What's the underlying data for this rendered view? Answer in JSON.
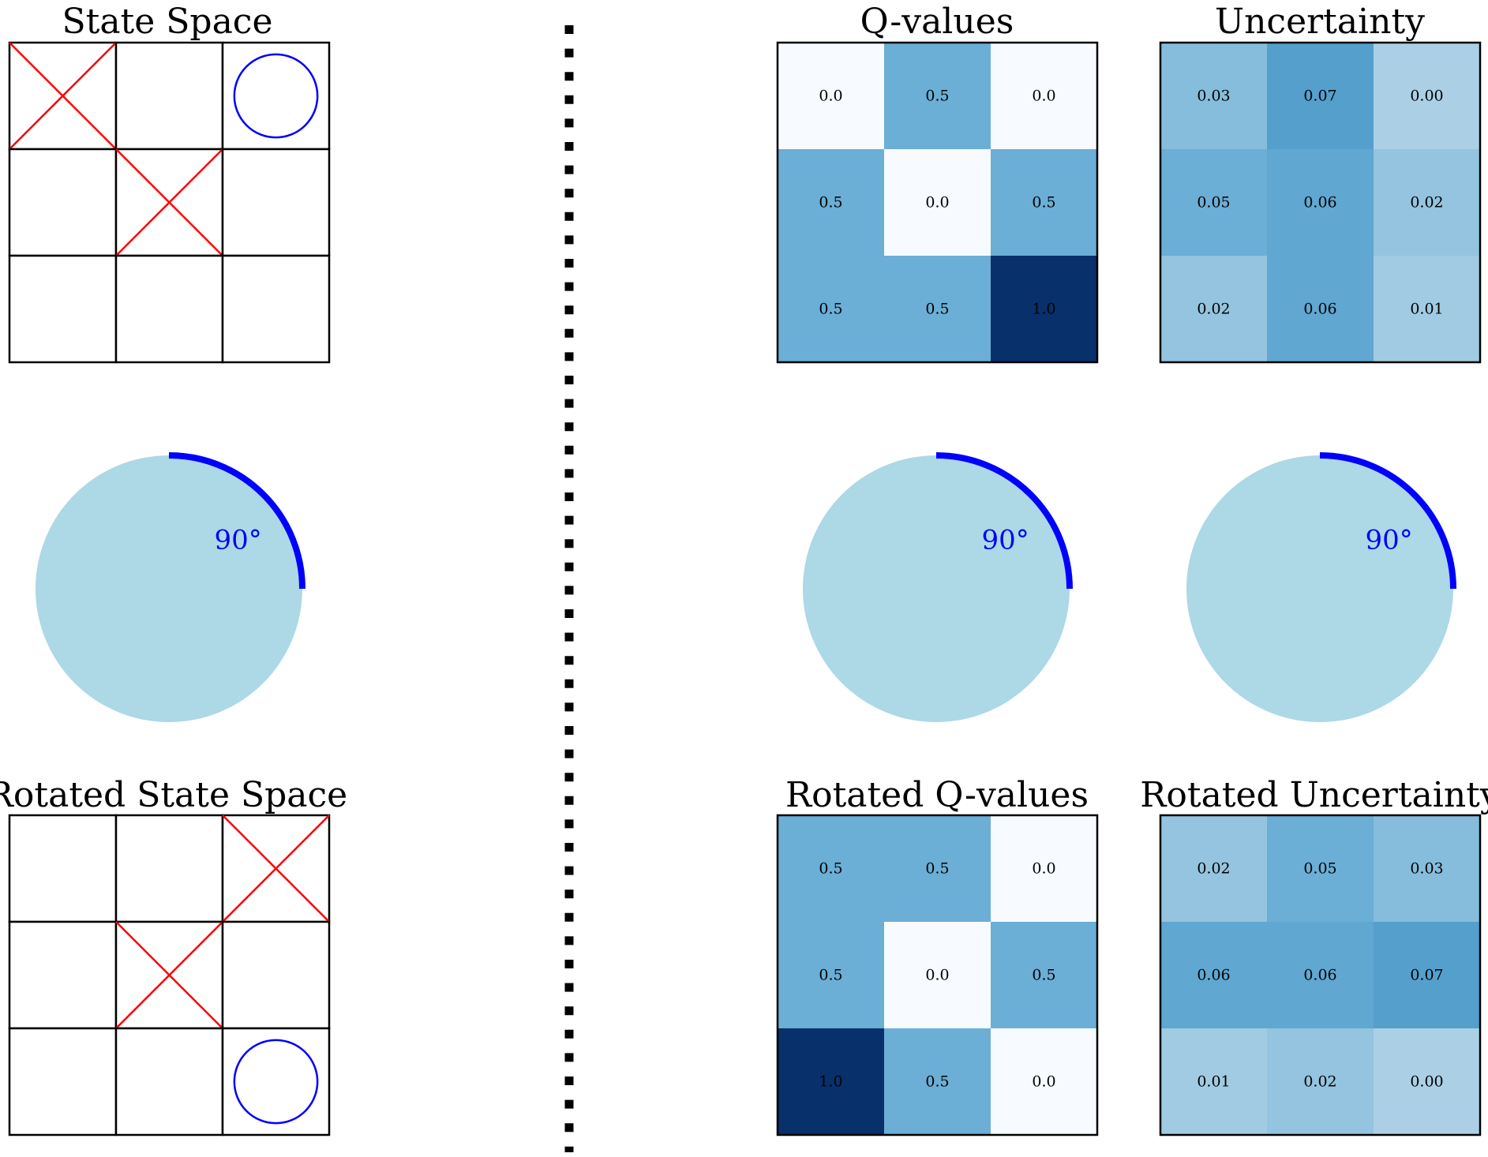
{
  "colors": {
    "x_mark": "#ff0000",
    "o_mark": "#0000ff",
    "grid_line": "#000000",
    "disk_fill": "#add8e6",
    "arc_stroke": "#0000ff",
    "angle_label": "#0000ff",
    "divider": "#000000",
    "colormap": "Blues"
  },
  "state_space": {
    "title": "State Space",
    "board": [
      [
        "X",
        "",
        "O"
      ],
      [
        "",
        "X",
        ""
      ],
      [
        "",
        "",
        ""
      ]
    ]
  },
  "rotated_state_space": {
    "title": "Rotated State Space",
    "board": [
      [
        "",
        "",
        "X"
      ],
      [
        "",
        "X",
        ""
      ],
      [
        "",
        "",
        "O"
      ]
    ]
  },
  "rotation": {
    "angle_label": "90°",
    "angle_degrees": 90
  },
  "chart_data": [
    {
      "type": "heatmap",
      "title": "Q-values",
      "values": [
        [
          0.0,
          0.5,
          0.0
        ],
        [
          0.5,
          0.0,
          0.5
        ],
        [
          0.5,
          0.5,
          1.0
        ]
      ],
      "labels": [
        [
          "0.0",
          "0.5",
          "0.0"
        ],
        [
          "0.5",
          "0.0",
          "0.5"
        ],
        [
          "0.5",
          "0.5",
          "1.0"
        ]
      ],
      "vmin": 0.0,
      "vmax": 1.0,
      "colormap": "Blues"
    },
    {
      "type": "heatmap",
      "title": "Uncertainty",
      "values": [
        [
          0.03,
          0.07,
          0.0
        ],
        [
          0.05,
          0.06,
          0.02
        ],
        [
          0.02,
          0.06,
          0.01
        ]
      ],
      "labels": [
        [
          "0.03",
          "0.07",
          "0.00"
        ],
        [
          "0.05",
          "0.06",
          "0.02"
        ],
        [
          "0.02",
          "0.06",
          "0.01"
        ]
      ],
      "vmin": -0.1,
      "vmax": 0.2,
      "colormap": "Blues"
    },
    {
      "type": "heatmap",
      "title": "Rotated Q-values",
      "values": [
        [
          0.5,
          0.5,
          0.0
        ],
        [
          0.5,
          0.0,
          0.5
        ],
        [
          1.0,
          0.5,
          0.0
        ]
      ],
      "labels": [
        [
          "0.5",
          "0.5",
          "0.0"
        ],
        [
          "0.5",
          "0.0",
          "0.5"
        ],
        [
          "1.0",
          "0.5",
          "0.0"
        ]
      ],
      "vmin": 0.0,
      "vmax": 1.0,
      "colormap": "Blues"
    },
    {
      "type": "heatmap",
      "title": "Rotated Uncertainty",
      "values": [
        [
          0.02,
          0.05,
          0.03
        ],
        [
          0.06,
          0.06,
          0.07
        ],
        [
          0.01,
          0.02,
          0.0
        ]
      ],
      "labels": [
        [
          "0.02",
          "0.05",
          "0.03"
        ],
        [
          "0.06",
          "0.06",
          "0.07"
        ],
        [
          "0.01",
          "0.02",
          "0.00"
        ]
      ],
      "vmin": -0.1,
      "vmax": 0.2,
      "colormap": "Blues"
    }
  ]
}
